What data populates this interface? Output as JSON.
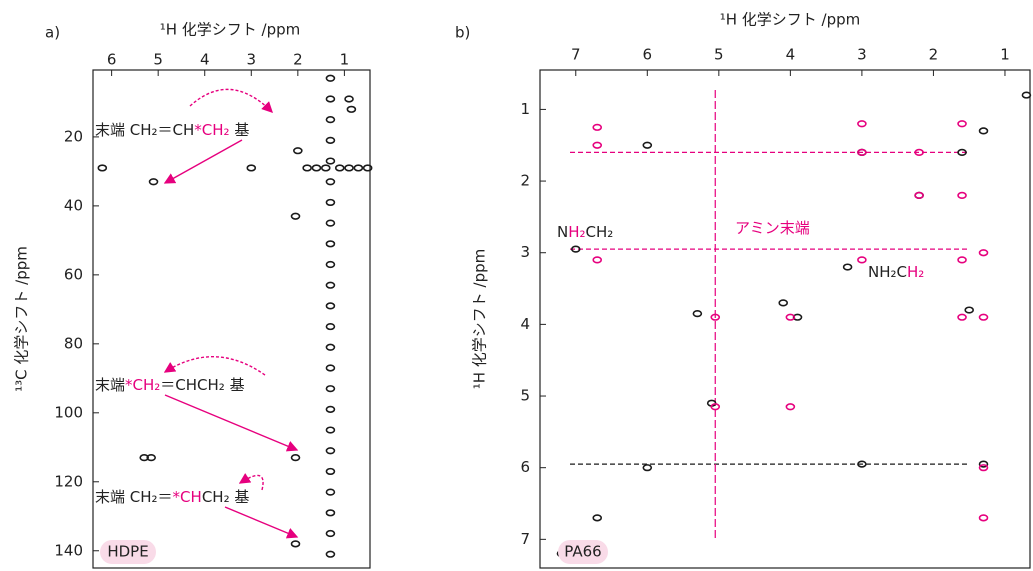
{
  "chart_data": [
    {
      "type": "scatter",
      "label": "a)",
      "xlabel": "¹H 化学シフト /ppm",
      "ylabel": "¹³C 化学シフト /ppm",
      "sample": "HDPE",
      "xlim": [
        6.4,
        0.45
      ],
      "ylim": [
        0.6,
        145
      ],
      "xticks": [
        6,
        5,
        4,
        3,
        2,
        1
      ],
      "yticks": [
        20,
        40,
        60,
        80,
        100,
        120,
        140
      ],
      "series": [
        {
          "color": "#1a1a1a",
          "x": [
            1.3,
            1.3,
            1.3,
            1.3,
            1.3,
            1.3,
            1.3,
            1.3,
            1.3,
            1.3,
            1.3,
            1.3,
            1.3,
            1.3,
            1.3,
            1.3,
            1.3,
            1.3,
            1.3,
            1.3,
            1.3,
            1.3,
            1.3,
            1.3
          ],
          "y": [
            3,
            9,
            15,
            21,
            27,
            33,
            39,
            45,
            51,
            57,
            63,
            69,
            75,
            81,
            87,
            93,
            99,
            105,
            111,
            117,
            123,
            129,
            135,
            141
          ]
        },
        {
          "color": "#1a1a1a",
          "x": [
            1.8,
            1.6,
            1.4,
            1.1,
            0.9,
            0.7,
            0.5,
            5.1,
            2.05,
            2.05,
            2.05,
            5.3,
            5.15,
            6.2,
            3.0,
            2.0,
            0.9,
            0.85
          ],
          "y": [
            29,
            29,
            29,
            29,
            29,
            29,
            29,
            33,
            43,
            113,
            138,
            113,
            113,
            29,
            29,
            24,
            9,
            12
          ]
        }
      ],
      "annotations": [
        [
          {
            "text": "末端 CH₂＝CH",
            "color": "#222222"
          },
          {
            "text": "*CH₂",
            "color": "#e6007e"
          },
          {
            "text": " 基",
            "color": "#222222"
          }
        ],
        [
          {
            "text": "末端",
            "color": "#222222"
          },
          {
            "text": "*CH₂",
            "color": "#e6007e"
          },
          {
            "text": "＝CHCH₂ 基",
            "color": "#222222"
          }
        ],
        [
          {
            "text": "末端 CH₂＝",
            "color": "#222222"
          },
          {
            "text": "*CH",
            "color": "#e6007e"
          },
          {
            "text": "CH₂ 基",
            "color": "#222222"
          }
        ]
      ]
    },
    {
      "type": "scatter",
      "label": "b)",
      "xlabel": "¹H 化学シフト /ppm",
      "ylabel": "¹H 化学シフト /ppm",
      "sample": "PA66",
      "xlim": [
        7.5,
        0.65
      ],
      "ylim": [
        0.45,
        7.4
      ],
      "xticks": [
        7,
        6,
        5,
        4,
        3,
        2,
        1
      ],
      "yticks": [
        1,
        2,
        3,
        4,
        5,
        6,
        7
      ],
      "series": [
        {
          "color": "#1a1a1a",
          "x": [
            1.3,
            1.6,
            2.2,
            3.2,
            3.9,
            4.1,
            5.1,
            6.0,
            6.7,
            7.2,
            0.7,
            6.0,
            3.0,
            1.3,
            7.0,
            5.3,
            3.0,
            1.5
          ],
          "y": [
            1.3,
            1.6,
            2.2,
            3.2,
            3.9,
            3.7,
            5.1,
            6.0,
            6.7,
            7.2,
            0.8,
            1.5,
            5.95,
            5.95,
            2.95,
            3.85,
            1.6,
            3.8
          ]
        },
        {
          "color": "#e6007e",
          "x": [
            6.7,
            6.7,
            6.7,
            5.05,
            5.05,
            4.0,
            4.0,
            3.0,
            3.0,
            3.0,
            1.6,
            1.6,
            1.6,
            1.6,
            1.3,
            1.3,
            1.3,
            1.3,
            2.2,
            2.2
          ],
          "y": [
            1.25,
            1.5,
            3.1,
            3.9,
            5.15,
            3.9,
            5.15,
            1.2,
            1.6,
            3.1,
            1.2,
            2.2,
            3.1,
            3.9,
            3.0,
            3.9,
            6.0,
            6.7,
            1.6,
            2.2
          ]
        }
      ],
      "hlines": [
        {
          "value": 1.6,
          "color": "#e6007e"
        },
        {
          "value": 2.95,
          "color": "#e6007e"
        },
        {
          "value": 5.95,
          "color": "#1a1a1a"
        }
      ],
      "vlines": [
        {
          "value": 5.05,
          "color": "#e6007e"
        }
      ],
      "annotations": [
        [
          {
            "text": "N",
            "color": "#222222"
          },
          {
            "text": "H₂",
            "color": "#e6007e"
          },
          {
            "text": "CH₂",
            "color": "#222222"
          }
        ],
        [
          {
            "text": "アミン末端",
            "color": "#e6007e"
          }
        ],
        [
          {
            "text": "NH₂C",
            "color": "#222222"
          },
          {
            "text": "H₂",
            "color": "#e6007e"
          }
        ]
      ]
    }
  ]
}
